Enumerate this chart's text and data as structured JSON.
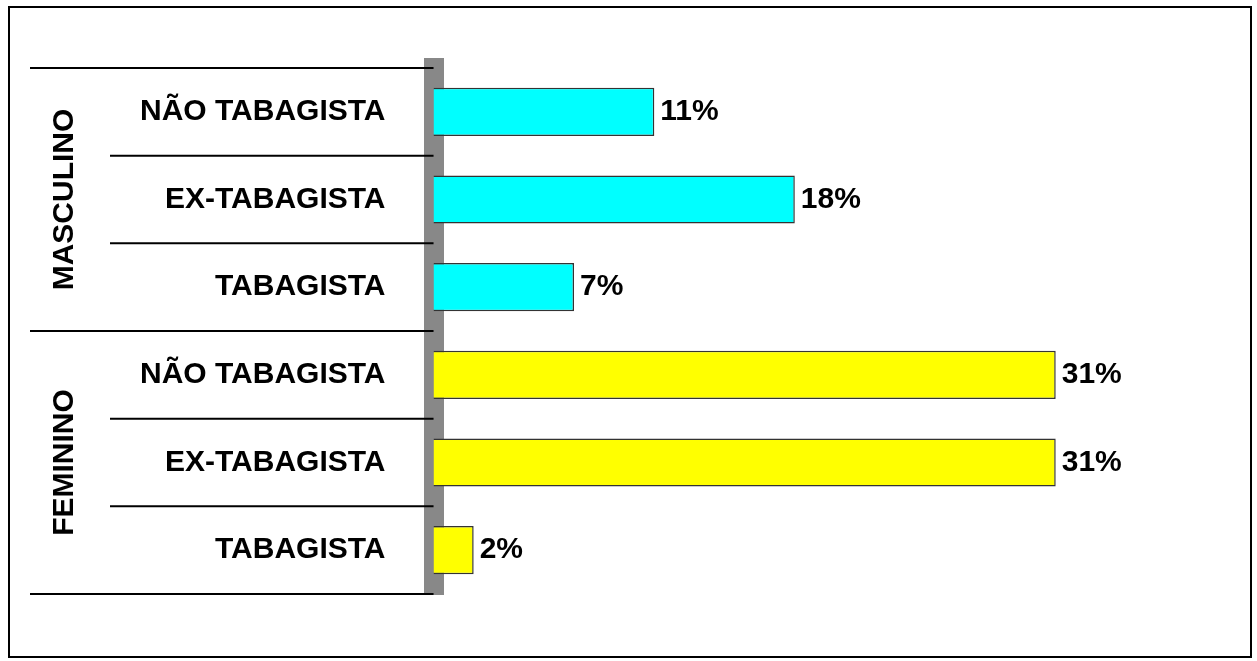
{
  "chart_data": {
    "type": "bar",
    "orientation": "horizontal",
    "stacked": true,
    "legend": false,
    "grid": false,
    "tick_labels": "y",
    "annotations": [
      "MASCULINO",
      "FEMININO"
    ],
    "categories": [
      "NÃO TABAGISTA",
      "EX-TABAGISTA",
      "TABAGISTA",
      "NÃO TABAGISTA",
      "EX-TABAGISTA",
      "TABAGISTA"
    ],
    "series": [
      {
        "color": "#00ffff",
        "values": [
          11,
          18,
          7,
          null,
          null,
          null
        ],
        "value_labels": [
          "11%",
          "18%",
          "7%",
          null,
          null,
          null
        ]
      },
      {
        "color": "#ffff00",
        "values": [
          null,
          null,
          null,
          31,
          31,
          2
        ],
        "value_labels": [
          null,
          null,
          null,
          "31%",
          "31%",
          "2%"
        ]
      }
    ]
  }
}
